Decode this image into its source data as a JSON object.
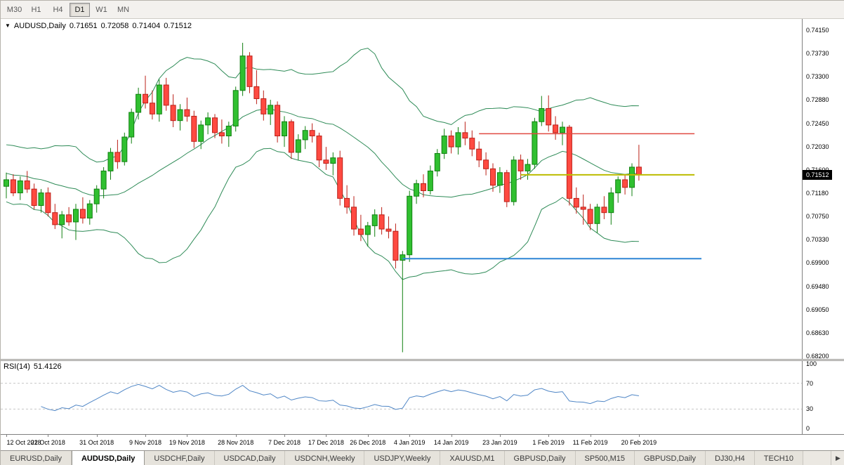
{
  "toolbar": {
    "timeframes": [
      {
        "label": "M30",
        "active": false
      },
      {
        "label": "H1",
        "active": false
      },
      {
        "label": "H4",
        "active": false
      },
      {
        "label": "D1",
        "active": true
      },
      {
        "label": "W1",
        "active": false
      },
      {
        "label": "MN",
        "active": false
      }
    ]
  },
  "chart": {
    "symbol_title": "AUDUSD,Daily",
    "marker_icon": "▼",
    "ohlc": {
      "open": "0.71651",
      "high": "0.72058",
      "low": "0.71404",
      "close": "0.71512"
    },
    "price_label": "0.71512",
    "axis_prices": [
      "0.74150",
      "0.73730",
      "0.73300",
      "0.72880",
      "0.72450",
      "0.72030",
      "0.71600",
      "0.71180",
      "0.70750",
      "0.70330",
      "0.69900",
      "0.69480",
      "0.69050",
      "0.68630",
      "0.68200"
    ],
    "date_labels": [
      {
        "label": "12 Oct 2018",
        "bar": 0
      },
      {
        "label": "22 Oct 2018",
        "bar": 6
      },
      {
        "label": "31 Oct 2018",
        "bar": 13
      },
      {
        "label": "9 Nov 2018",
        "bar": 20
      },
      {
        "label": "19 Nov 2018",
        "bar": 26
      },
      {
        "label": "28 Nov 2018",
        "bar": 33
      },
      {
        "label": "7 Dec 2018",
        "bar": 40
      },
      {
        "label": "17 Dec 2018",
        "bar": 46
      },
      {
        "label": "26 Dec 2018",
        "bar": 52
      },
      {
        "label": "4 Jan 2019",
        "bar": 58
      },
      {
        "label": "14 Jan 2019",
        "bar": 64
      },
      {
        "label": "23 Jan 2019",
        "bar": 71
      },
      {
        "label": "1 Feb 2019",
        "bar": 78
      },
      {
        "label": "11 Feb 2019",
        "bar": 84
      },
      {
        "label": "20 Feb 2019",
        "bar": 91
      }
    ]
  },
  "rsi_panel": {
    "label": "RSI(14)",
    "value": "51.4126",
    "axis": [
      "100",
      "70",
      "30",
      "0"
    ]
  },
  "tabs": {
    "scroll_icon": "▶",
    "items": [
      {
        "label": "EURUSD,Daily",
        "active": false
      },
      {
        "label": "AUDUSD,Daily",
        "active": true
      },
      {
        "label": "USDCHF,Daily",
        "active": false
      },
      {
        "label": "USDCAD,Daily",
        "active": false
      },
      {
        "label": "USDCNH,Weekly",
        "active": false
      },
      {
        "label": "USDJPY,Weekly",
        "active": false
      },
      {
        "label": "XAUUSD,M1",
        "active": false
      },
      {
        "label": "GBPUSD,Daily",
        "active": false
      },
      {
        "label": "SP500,M15",
        "active": false
      },
      {
        "label": "GBPUSD,Daily",
        "active": false
      },
      {
        "label": "DJ30,H4",
        "active": false
      },
      {
        "label": "TECH10",
        "active": false
      }
    ]
  },
  "chart_data": {
    "type": "candlestick",
    "symbol": "AUDUSD",
    "timeframe": "Daily",
    "current_price": 0.71512,
    "price_axis": {
      "max": 0.7415,
      "min": 0.682
    },
    "colors": {
      "bull": "#30c030",
      "bull_border": "#118011",
      "bear": "#ff4a41",
      "bear_border": "#bb2018",
      "background": "#ffffff"
    },
    "indicators": {
      "bollinger": {
        "period": 20,
        "deviation": 2,
        "color": "#2e8b57"
      },
      "rsi": {
        "period": 14,
        "value_label": "51.4126",
        "color": "#4f86c6",
        "levels_dashed": [
          70,
          30
        ],
        "axis_labels": [
          "100",
          "70",
          "30",
          "0"
        ]
      }
    },
    "hlines": [
      {
        "name": "resistance-line-red",
        "price": 0.7226,
        "color": "#e04a42",
        "width": 1.5,
        "from_bar": 68,
        "to_bar": 99
      },
      {
        "name": "current-level-line-yellow",
        "price": 0.7151,
        "color": "#bcbc00",
        "width": 2,
        "from_bar": 74,
        "to_bar": 99
      },
      {
        "name": "support-line-blue",
        "price": 0.6998,
        "color": "#2f86d5",
        "width": 2,
        "from_bar": 57,
        "to_bar": 100
      }
    ],
    "warmup_candles": [
      [
        0.723,
        0.724,
        0.7195,
        0.7205
      ],
      [
        0.7205,
        0.7215,
        0.717,
        0.718
      ],
      [
        0.718,
        0.7195,
        0.7155,
        0.7165
      ],
      [
        0.7165,
        0.718,
        0.714,
        0.715
      ],
      [
        0.715,
        0.7175,
        0.7135,
        0.7168
      ],
      [
        0.7168,
        0.719,
        0.715,
        0.7158
      ],
      [
        0.7158,
        0.717,
        0.712,
        0.7128
      ],
      [
        0.7128,
        0.715,
        0.7105,
        0.7112
      ],
      [
        0.7112,
        0.714,
        0.7095,
        0.713
      ]
    ],
    "candles": [
      [
        0.713,
        0.7155,
        0.7108,
        0.7142
      ],
      [
        0.7142,
        0.7152,
        0.7112,
        0.7118
      ],
      [
        0.7118,
        0.7148,
        0.7105,
        0.714
      ],
      [
        0.714,
        0.7158,
        0.7118,
        0.7125
      ],
      [
        0.7125,
        0.7135,
        0.7088,
        0.7095
      ],
      [
        0.7095,
        0.7125,
        0.7082,
        0.7118
      ],
      [
        0.7118,
        0.7128,
        0.7075,
        0.7082
      ],
      [
        0.7082,
        0.7098,
        0.7052,
        0.706
      ],
      [
        0.706,
        0.7085,
        0.7035,
        0.7078
      ],
      [
        0.7078,
        0.7092,
        0.7058,
        0.7065
      ],
      [
        0.7065,
        0.7098,
        0.7032,
        0.7088
      ],
      [
        0.7088,
        0.711,
        0.7062,
        0.7072
      ],
      [
        0.7072,
        0.7105,
        0.706,
        0.7098
      ],
      [
        0.7098,
        0.7132,
        0.7082,
        0.7125
      ],
      [
        0.7125,
        0.7165,
        0.7108,
        0.7158
      ],
      [
        0.7158,
        0.72,
        0.7142,
        0.7192
      ],
      [
        0.7192,
        0.7215,
        0.7162,
        0.7175
      ],
      [
        0.7175,
        0.7228,
        0.7168,
        0.722
      ],
      [
        0.722,
        0.7272,
        0.7208,
        0.7265
      ],
      [
        0.7265,
        0.731,
        0.7252,
        0.7298
      ],
      [
        0.7298,
        0.7332,
        0.7272,
        0.7282
      ],
      [
        0.7282,
        0.7305,
        0.7252,
        0.7262
      ],
      [
        0.7262,
        0.7325,
        0.7248,
        0.7315
      ],
      [
        0.7315,
        0.7328,
        0.7268,
        0.7278
      ],
      [
        0.7278,
        0.7298,
        0.7238,
        0.725
      ],
      [
        0.725,
        0.728,
        0.7232,
        0.727
      ],
      [
        0.727,
        0.7292,
        0.7248,
        0.7258
      ],
      [
        0.7258,
        0.7268,
        0.72,
        0.7212
      ],
      [
        0.7212,
        0.725,
        0.7198,
        0.7242
      ],
      [
        0.7242,
        0.7265,
        0.7225,
        0.7255
      ],
      [
        0.7255,
        0.7262,
        0.7218,
        0.7228
      ],
      [
        0.7228,
        0.7252,
        0.7208,
        0.7222
      ],
      [
        0.7222,
        0.7248,
        0.7202,
        0.724
      ],
      [
        0.724,
        0.7312,
        0.723,
        0.7305
      ],
      [
        0.7305,
        0.7392,
        0.7295,
        0.7368
      ],
      [
        0.7368,
        0.7375,
        0.73,
        0.7312
      ],
      [
        0.7312,
        0.7342,
        0.728,
        0.729
      ],
      [
        0.729,
        0.7305,
        0.725,
        0.7262
      ],
      [
        0.7262,
        0.7288,
        0.7242,
        0.7278
      ],
      [
        0.7278,
        0.7285,
        0.721,
        0.7222
      ],
      [
        0.7222,
        0.7258,
        0.7202,
        0.7248
      ],
      [
        0.7248,
        0.7252,
        0.718,
        0.7192
      ],
      [
        0.7192,
        0.7225,
        0.7178,
        0.7215
      ],
      [
        0.7215,
        0.724,
        0.7198,
        0.7232
      ],
      [
        0.7232,
        0.7245,
        0.721,
        0.7222
      ],
      [
        0.7222,
        0.7228,
        0.7165,
        0.7178
      ],
      [
        0.7178,
        0.7202,
        0.716,
        0.7172
      ],
      [
        0.7172,
        0.7192,
        0.715,
        0.7182
      ],
      [
        0.7182,
        0.7195,
        0.7095,
        0.7108
      ],
      [
        0.7108,
        0.7132,
        0.708,
        0.7092
      ],
      [
        0.7092,
        0.7112,
        0.704,
        0.7052
      ],
      [
        0.7052,
        0.7078,
        0.703,
        0.7042
      ],
      [
        0.7042,
        0.7065,
        0.702,
        0.7058
      ],
      [
        0.7058,
        0.7088,
        0.7038,
        0.7078
      ],
      [
        0.7078,
        0.7092,
        0.7042,
        0.7052
      ],
      [
        0.7052,
        0.7075,
        0.7035,
        0.7048
      ],
      [
        0.7048,
        0.7062,
        0.698,
        0.6995
      ],
      [
        0.6995,
        0.7012,
        0.6827,
        0.7005
      ],
      [
        0.7005,
        0.7122,
        0.6992,
        0.7112
      ],
      [
        0.7112,
        0.7142,
        0.7098,
        0.7135
      ],
      [
        0.7135,
        0.7152,
        0.711,
        0.7122
      ],
      [
        0.7122,
        0.7168,
        0.7115,
        0.7158
      ],
      [
        0.7158,
        0.7198,
        0.7148,
        0.719
      ],
      [
        0.719,
        0.7235,
        0.718,
        0.7222
      ],
      [
        0.7222,
        0.7232,
        0.719,
        0.7202
      ],
      [
        0.7202,
        0.7238,
        0.7188,
        0.7228
      ],
      [
        0.7228,
        0.7248,
        0.7205,
        0.7218
      ],
      [
        0.7218,
        0.7232,
        0.7185,
        0.7198
      ],
      [
        0.7198,
        0.7212,
        0.7165,
        0.7178
      ],
      [
        0.7178,
        0.7192,
        0.715,
        0.7162
      ],
      [
        0.7162,
        0.7172,
        0.712,
        0.7132
      ],
      [
        0.7132,
        0.7165,
        0.7118,
        0.7155
      ],
      [
        0.7155,
        0.716,
        0.7092,
        0.7102
      ],
      [
        0.7102,
        0.7185,
        0.7095,
        0.7178
      ],
      [
        0.7178,
        0.7188,
        0.7142,
        0.7158
      ],
      [
        0.7158,
        0.718,
        0.7142,
        0.717
      ],
      [
        0.717,
        0.7255,
        0.7162,
        0.7248
      ],
      [
        0.7248,
        0.7295,
        0.724,
        0.7272
      ],
      [
        0.7272,
        0.7296,
        0.723,
        0.7242
      ],
      [
        0.7242,
        0.7258,
        0.7215,
        0.7228
      ],
      [
        0.7228,
        0.7248,
        0.7205,
        0.7238
      ],
      [
        0.7238,
        0.7242,
        0.7095,
        0.7108
      ],
      [
        0.7108,
        0.7128,
        0.708,
        0.7092
      ],
      [
        0.7092,
        0.7115,
        0.706,
        0.7088
      ],
      [
        0.7088,
        0.7098,
        0.705,
        0.7062
      ],
      [
        0.7062,
        0.7098,
        0.7045,
        0.7092
      ],
      [
        0.7092,
        0.7112,
        0.707,
        0.7082
      ],
      [
        0.7082,
        0.7128,
        0.706,
        0.7118
      ],
      [
        0.7118,
        0.7148,
        0.71,
        0.7142
      ],
      [
        0.7142,
        0.7152,
        0.7115,
        0.7128
      ],
      [
        0.7128,
        0.7172,
        0.7112,
        0.7165
      ],
      [
        0.71651,
        0.72058,
        0.71404,
        0.71512
      ]
    ]
  }
}
